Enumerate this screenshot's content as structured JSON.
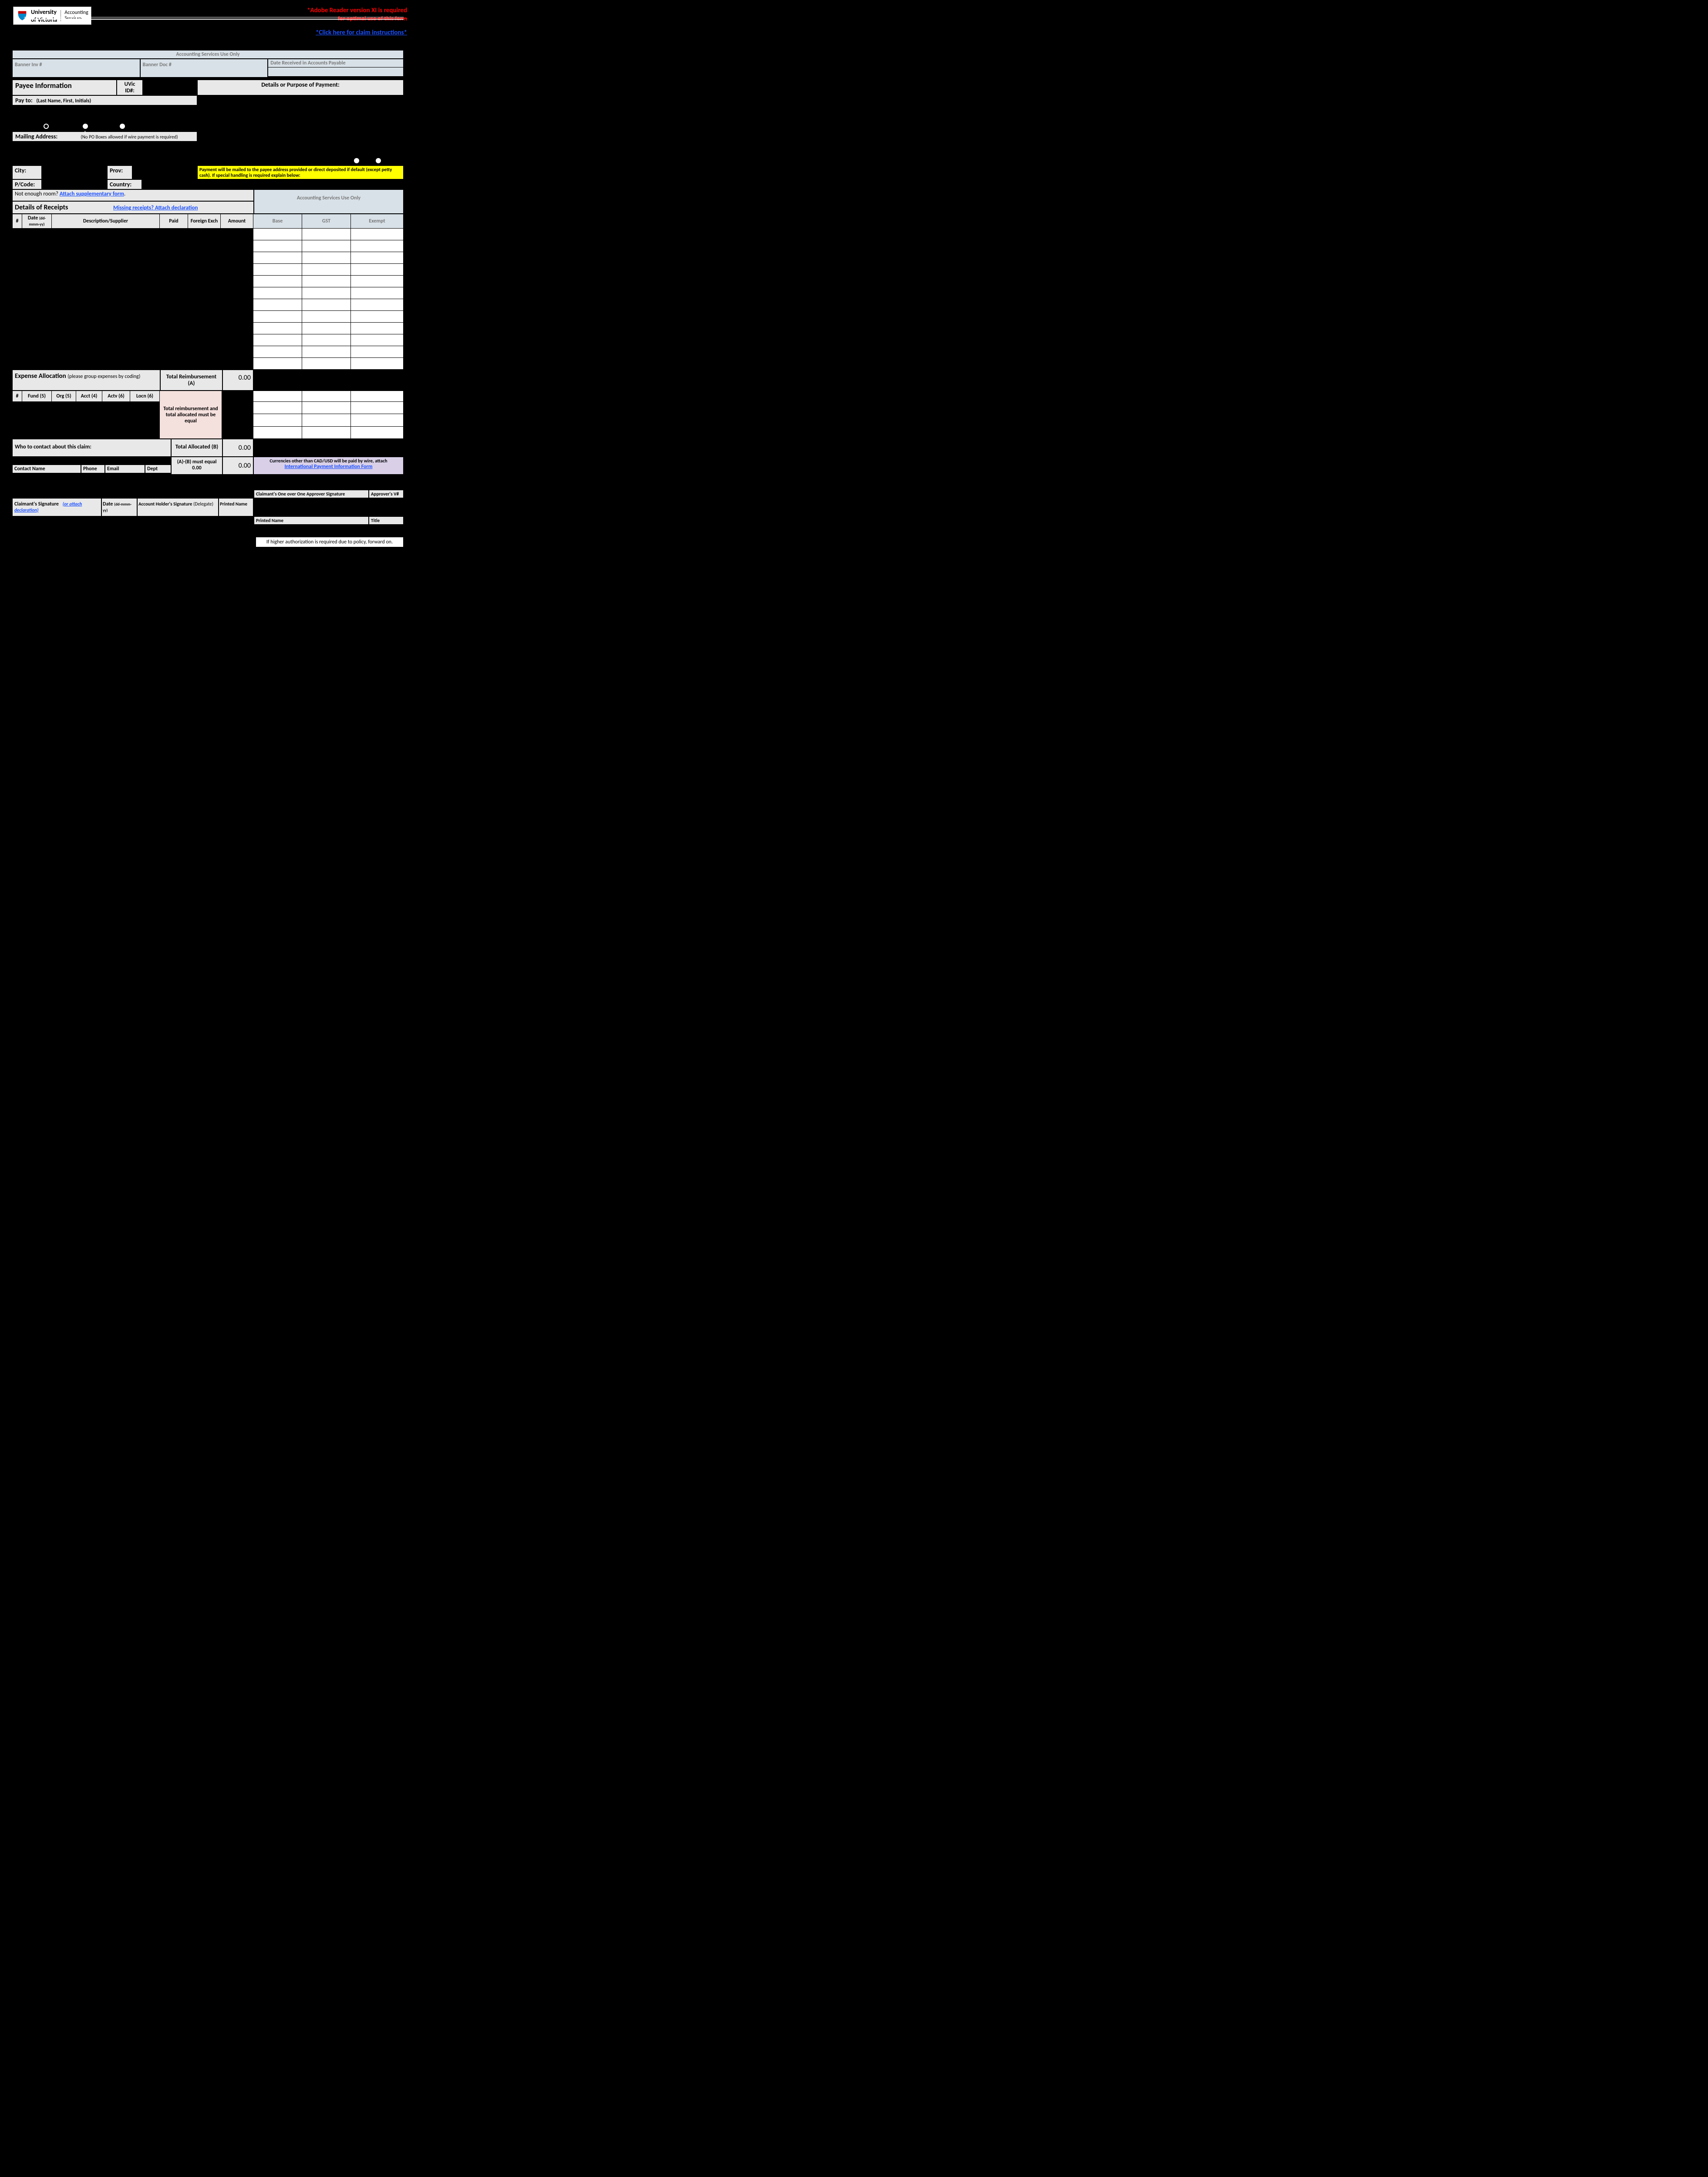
{
  "header": {
    "university": "University",
    "of_victoria": "of Victoria",
    "accounting": "Accounting",
    "services": "Services",
    "warning_line1": "*Adobe Reader version XI is required",
    "warning_line2": "for optimal use of this form",
    "instructions_link": "*Click here for claim instructions*"
  },
  "acct_use": {
    "title": "Accounting Services Use Only",
    "banner_inv": "Banner Inv #",
    "banner_doc": "Banner Doc #",
    "date_received": "Date Received in Accounts Payable"
  },
  "payee": {
    "title": "Payee Information",
    "uvic_id": "UVic ID#:",
    "details_title": "Details or Purpose of Payment:",
    "pay_to": "Pay to:",
    "pay_to_hint": "(Last Name, First, Initials)",
    "mailing": "Mailing Address:",
    "mailing_hint": "(No PO Boxes allowed if wire payment is required)",
    "city": "City:",
    "prov": "Prov:",
    "pcode": "P/Code:",
    "country": "Country:",
    "yellow_note": "Payment will be mailed to the payee address provided or direct deposited if default (except petty cash). If special handling is required explain below:",
    "not_enough": "Not enough room? ",
    "attach_supp": "Attach supplementary form",
    "dot": "."
  },
  "receipts": {
    "title": "Details of Receipts",
    "missing_link": "Missing receipts? Attach declaration",
    "acct_use_only": "Accounting Services Use Only",
    "cols": {
      "num": "#",
      "date": "Date",
      "date_fmt": "(dd-mmm-yy)",
      "desc": "Description/Supplier",
      "paid": "Paid",
      "fx": "Foreign Exch",
      "amount": "Amount",
      "base": "Base",
      "gst": "GST",
      "exempt": "Exempt"
    },
    "row_count": 12
  },
  "allocation": {
    "title": "Expense Allocation",
    "hint": "(please group expenses by coding)",
    "cols": {
      "num": "#",
      "fund": "Fund (5)",
      "org": "Org (5)",
      "acct": "Acct (4)",
      "actv": "Actv (6)",
      "locn": "Locn (6)"
    },
    "total_reimb_label": "Total Reimbursement (A)",
    "total_reimb_val": "0.00",
    "pink_note": "Total reimbursement and total allocated must be equal",
    "who_contact": "Who to contact about this claim:",
    "total_alloc_label": "Total Allocated (B)",
    "total_alloc_val": "0.00",
    "ab_label": "(A)-(B) must equal 0.00",
    "ab_val": "0.00",
    "contact_name": "Contact Name",
    "phone": "Phone",
    "email": "Email",
    "dept": "Dept",
    "lavender_note": "Currencies other than CAD/USD will be paid by wire, attach ",
    "lavender_link": "International Payment  Information Form",
    "acct_rows": 4
  },
  "signatures": {
    "claimant_sig": "Claimant's Signature",
    "or_attach": "(or attach declaration)",
    "date": "Date",
    "date_fmt": "(dd-mmm-yy)",
    "holder_sig": "Account Holder's Signature",
    "delegate": "(Delegate)",
    "printed": "Printed Name",
    "approver_sig": "Claimant's One over One Approver Signature",
    "approver_v": "Approver's V#",
    "printed2": "Printed Name",
    "title": "Title",
    "footer": "If higher authorization is required due to policy, forward on."
  },
  "colors": {
    "page_bg": "#000000",
    "cell_blue": "#d8e1e8",
    "cell_gray": "#e8e8e8",
    "yellow": "#ffff00",
    "pink": "#f4e0dd",
    "lavender": "#d9d0e8",
    "link": "#1a4fff",
    "red": "#ff0000"
  }
}
